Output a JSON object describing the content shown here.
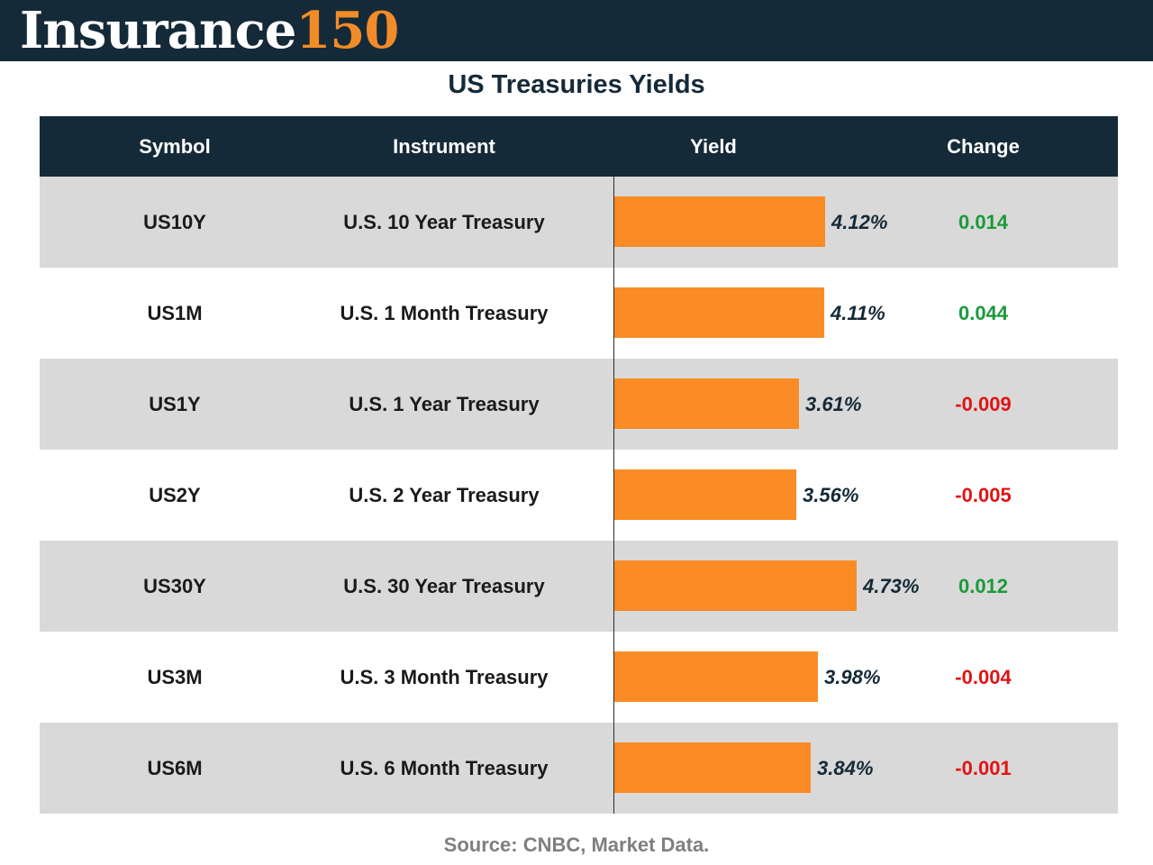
{
  "brand": {
    "word": "Insurance",
    "number": "150"
  },
  "chart_data": {
    "type": "table",
    "title": "US Treasuries Yields",
    "columns": [
      "Symbol",
      "Instrument",
      "Yield",
      "Change"
    ],
    "rows": [
      {
        "symbol": "US10Y",
        "instrument": "U.S. 10 Year Treasury",
        "yield": 4.12,
        "yield_label": "4.12%",
        "change": 0.014,
        "change_label": "0.014"
      },
      {
        "symbol": "US1M",
        "instrument": "U.S. 1 Month Treasury",
        "yield": 4.11,
        "yield_label": "4.11%",
        "change": 0.044,
        "change_label": "0.044"
      },
      {
        "symbol": "US1Y",
        "instrument": "U.S. 1 Year Treasury",
        "yield": 3.61,
        "yield_label": "3.61%",
        "change": -0.009,
        "change_label": "-0.009"
      },
      {
        "symbol": "US2Y",
        "instrument": "U.S. 2 Year Treasury",
        "yield": 3.56,
        "yield_label": "3.56%",
        "change": -0.005,
        "change_label": "-0.005"
      },
      {
        "symbol": "US30Y",
        "instrument": "U.S. 30 Year Treasury",
        "yield": 4.73,
        "yield_label": "4.73%",
        "change": 0.012,
        "change_label": "0.012"
      },
      {
        "symbol": "US3M",
        "instrument": "U.S. 3 Month Treasury",
        "yield": 3.98,
        "yield_label": "3.98%",
        "change": -0.004,
        "change_label": "-0.004"
      },
      {
        "symbol": "US6M",
        "instrument": "U.S. 6 Month Treasury",
        "yield": 3.84,
        "yield_label": "3.84%",
        "change": -0.001,
        "change_label": "-0.001"
      }
    ],
    "colors": {
      "bar": "#fa8b25",
      "header": "#152a38",
      "row_shade": "#d9d9d9",
      "positive": "#1a9a3a",
      "negative": "#e01414"
    }
  },
  "source": "Source: CNBC, Market Data."
}
